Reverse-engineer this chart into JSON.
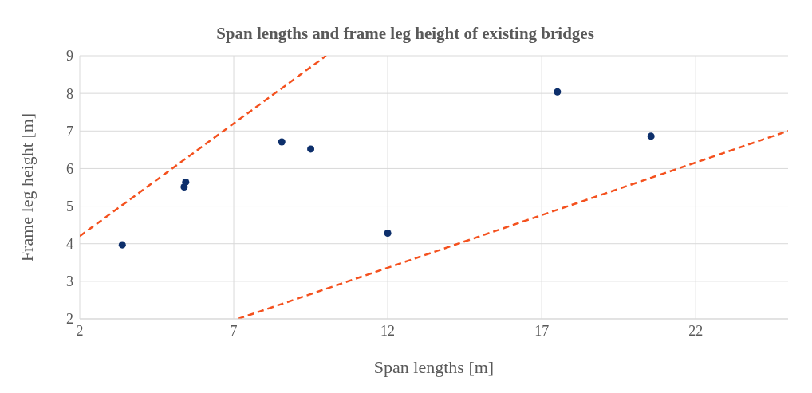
{
  "chart_data": {
    "type": "scatter",
    "title": "Span lengths and frame leg height of existing bridges",
    "xlabel": "Span lengths [m]",
    "ylabel": "Frame leg height [m]",
    "xlim": [
      2,
      25
    ],
    "xticks": [
      2,
      7,
      12,
      17,
      22
    ],
    "ylim": [
      2,
      9
    ],
    "yticks": [
      2,
      3,
      4,
      5,
      6,
      7,
      8,
      9
    ],
    "grid": true,
    "legend": false,
    "series": [
      {
        "color": "#0d2f6b",
        "marker": "circle",
        "x": [
          3.38,
          5.39,
          5.44,
          8.56,
          9.5,
          12.0,
          17.51,
          20.55
        ],
        "values": [
          3.97,
          5.51,
          5.64,
          6.71,
          6.52,
          4.28,
          8.04,
          6.86
        ]
      },
      {
        "type": "line",
        "color": "#f4511e",
        "line_style": "dashed",
        "marker": "none",
        "x": [
          2,
          10
        ],
        "values": [
          4.2,
          9
        ]
      },
      {
        "type": "line",
        "color": "#f4511e",
        "line_style": "dashed",
        "marker": "none",
        "x": [
          7.14,
          25
        ],
        "values": [
          2,
          7
        ]
      }
    ]
  }
}
